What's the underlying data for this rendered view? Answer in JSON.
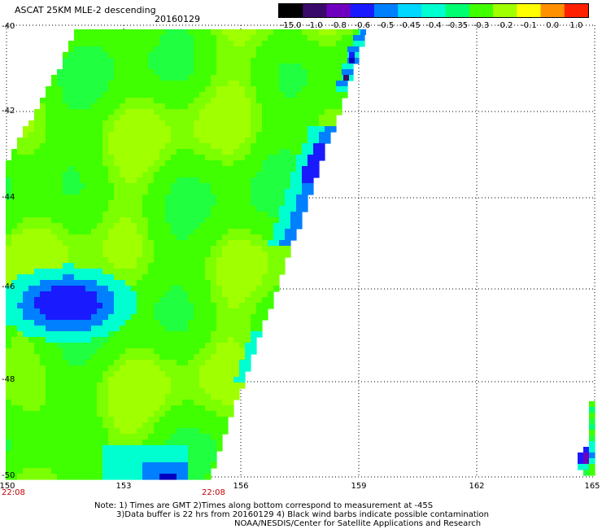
{
  "header": {
    "title": "ASCAT 25KM MLE-2 descending",
    "date": "20160129"
  },
  "colorbar": {
    "labels": [
      "-15.0",
      "-1.0",
      "-0.8",
      "-0.6",
      "-0.5",
      "-0.45",
      "-0.4",
      "-0.35",
      "-0.3",
      "-0.2",
      "-0.1",
      "0.0",
      "1.0"
    ],
    "colors": [
      "#000000",
      "#3a0a6a",
      "#7000c0",
      "#1a1aff",
      "#0080ff",
      "#00d8ff",
      "#00ffd0",
      "#00ff70",
      "#40ff00",
      "#a0ff00",
      "#ffff00",
      "#ff9000",
      "#ff2000"
    ]
  },
  "axes": {
    "lat_labels": [
      "-40",
      "-42",
      "-44",
      "-46",
      "-48",
      "-50"
    ],
    "lon_labels": [
      "150",
      "153",
      "156",
      "159",
      "162",
      "165"
    ]
  },
  "times": {
    "left": "22:08",
    "center": "22:08"
  },
  "notes": {
    "line1": "Note: 1) Times are GMT 2)Times along bottom correspond to measurement at -45S",
    "line2": "3)Data buffer is 22 hrs from 20160129 4) Black wind barbs indicate possible contamination",
    "line3": "NOAA/NESDIS/Center for Satellite Applications and Research"
  }
}
